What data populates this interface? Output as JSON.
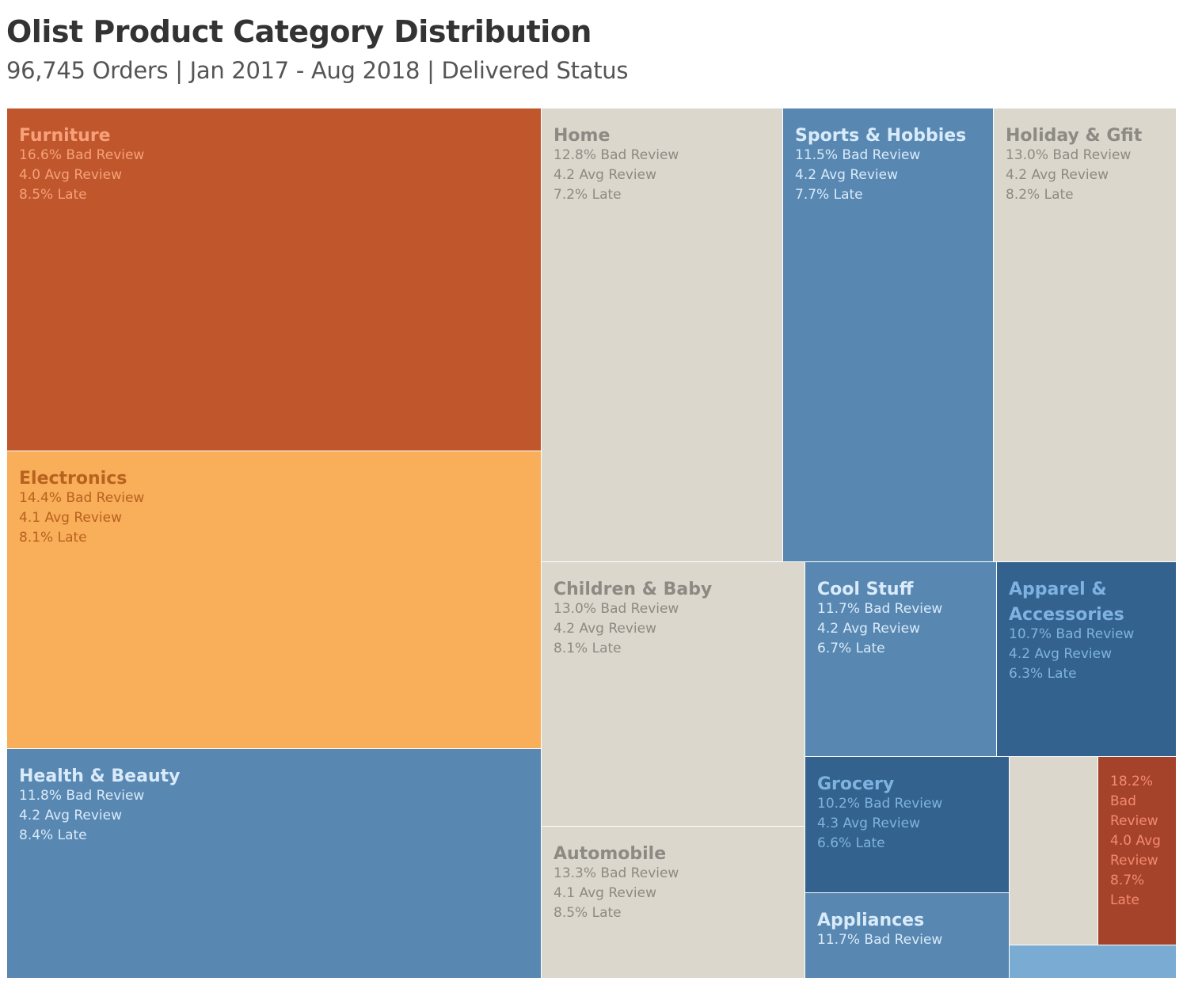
{
  "header": {
    "title": "Olist Product Category Distribution",
    "subtitle": "96,745  Orders | Jan 2017 - Aug 2018 | Delivered Status"
  },
  "colors": {
    "dark_orange": "#c0562b",
    "orange": "#f9ae5a",
    "beige": "#dbd7cd",
    "blue": "#5887b1",
    "dark_blue": "#33628e",
    "light_blue": "#7aabd2",
    "red_brown": "#a5432a"
  },
  "chart_data": {
    "type": "treemap",
    "measures": [
      "Bad Review (%)",
      "Avg Review",
      "Late (%)"
    ],
    "tiles": [
      {
        "name": "Furniture",
        "lines": [
          "16.6%  Bad Review",
          "4.0 Avg Review",
          "8.5% Late"
        ],
        "bad_review_pct": 16.6,
        "avg_review": 4.0,
        "late_pct": 8.5,
        "fill": "#c0562b",
        "text_color": "#f6a17b"
      },
      {
        "name": "Electronics",
        "lines": [
          "14.4%  Bad Review",
          "4.1 Avg Review",
          "8.1% Late"
        ],
        "bad_review_pct": 14.4,
        "avg_review": 4.1,
        "late_pct": 8.1,
        "fill": "#f9ae5a",
        "text_color": "#b8621f"
      },
      {
        "name": "Health & Beauty",
        "lines": [
          "11.8%  Bad Review",
          "4.2 Avg Review",
          "8.4% Late"
        ],
        "bad_review_pct": 11.8,
        "avg_review": 4.2,
        "late_pct": 8.4,
        "fill": "#5887b1",
        "text_color": "#d9ebfa"
      },
      {
        "name": "Home",
        "lines": [
          "12.8%  Bad Review",
          "4.2 Avg Review",
          "7.2% Late"
        ],
        "bad_review_pct": 12.8,
        "avg_review": 4.2,
        "late_pct": 7.2,
        "fill": "#dbd7cd",
        "text_color": "#8d8a83"
      },
      {
        "name": "Sports & Hobbies",
        "lines": [
          "11.5%  Bad Review",
          "4.2 Avg Review",
          "7.7% Late"
        ],
        "bad_review_pct": 11.5,
        "avg_review": 4.2,
        "late_pct": 7.7,
        "fill": "#5887b1",
        "text_color": "#d9ebfa"
      },
      {
        "name": "Holiday & Gfit",
        "lines": [
          "13.0%  Bad Review",
          "4.2 Avg Review",
          "8.2% Late"
        ],
        "bad_review_pct": 13.0,
        "avg_review": 4.2,
        "late_pct": 8.2,
        "fill": "#dbd7cd",
        "text_color": "#8d8a83"
      },
      {
        "name": "Children & Baby",
        "lines": [
          "13.0%  Bad Review",
          "4.2 Avg Review",
          "8.1% Late"
        ],
        "bad_review_pct": 13.0,
        "avg_review": 4.2,
        "late_pct": 8.1,
        "fill": "#dbd7cd",
        "text_color": "#8d8a83"
      },
      {
        "name": "Cool Stuff",
        "lines": [
          "11.7%  Bad Review",
          "4.2 Avg Review",
          "6.7% Late"
        ],
        "bad_review_pct": 11.7,
        "avg_review": 4.2,
        "late_pct": 6.7,
        "fill": "#5887b1",
        "text_color": "#d9ebfa"
      },
      {
        "name": "Apparel & Accessories",
        "lines": [
          "10.7%  Bad Review",
          "4.2 Avg Review",
          "6.3% Late"
        ],
        "bad_review_pct": 10.7,
        "avg_review": 4.2,
        "late_pct": 6.3,
        "fill": "#33628e",
        "text_color": "#7fb2e0"
      },
      {
        "name": "Automobile",
        "lines": [
          "13.3%  Bad Review",
          "4.1 Avg Review",
          "8.5% Late"
        ],
        "bad_review_pct": 13.3,
        "avg_review": 4.1,
        "late_pct": 8.5,
        "fill": "#dbd7cd",
        "text_color": "#8d8a83"
      },
      {
        "name": "Grocery",
        "lines": [
          "10.2%  Bad Review",
          "4.3 Avg Review",
          "6.6% Late"
        ],
        "bad_review_pct": 10.2,
        "avg_review": 4.3,
        "late_pct": 6.6,
        "fill": "#33628e",
        "text_color": "#7fb2e0"
      },
      {
        "name": "Appliances",
        "lines": [
          "11.7%  Bad Review"
        ],
        "bad_review_pct": 11.7,
        "fill": "#5887b1",
        "text_color": "#d9ebfa"
      },
      {
        "name": "",
        "lines": [],
        "fill": "#dbd7cd",
        "text_color": "#8d8a83"
      },
      {
        "name": "",
        "lines": [
          "18.2%",
          "Bad",
          "Review",
          "4.0 Avg",
          "Review",
          "8.7%",
          "Late"
        ],
        "bad_review_pct": 18.2,
        "avg_review": 4.0,
        "late_pct": 8.7,
        "fill": "#a5432a",
        "text_color": "#f28a6e"
      },
      {
        "name": "",
        "lines": [],
        "fill": "#7aabd2",
        "text_color": "#ffffff"
      }
    ]
  }
}
